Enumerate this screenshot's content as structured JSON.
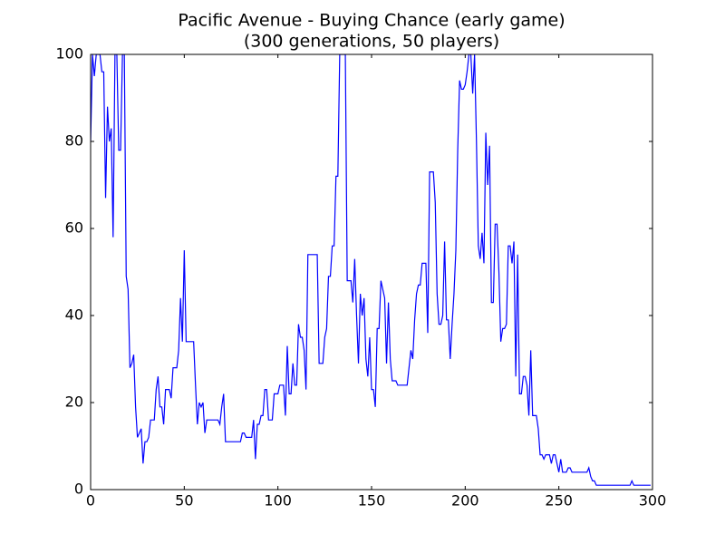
{
  "chart_data": {
    "type": "line",
    "title": "Pacific Avenue - Buying Chance (early game)",
    "subtitle": "(300 generations, 50 players)",
    "x": [
      0,
      1,
      2,
      3,
      4,
      5,
      6,
      7,
      8,
      9,
      10,
      11,
      12,
      13,
      14,
      15,
      16,
      17,
      18,
      19,
      20,
      21,
      22,
      23,
      24,
      25,
      26,
      27,
      28,
      29,
      30,
      31,
      32,
      33,
      34,
      35,
      36,
      37,
      38,
      39,
      40,
      41,
      42,
      43,
      44,
      45,
      46,
      47,
      48,
      49,
      50,
      51,
      52,
      53,
      54,
      55,
      56,
      57,
      58,
      59,
      60,
      61,
      62,
      63,
      64,
      65,
      66,
      67,
      68,
      69,
      70,
      71,
      72,
      73,
      74,
      75,
      76,
      77,
      78,
      79,
      80,
      81,
      82,
      83,
      84,
      85,
      86,
      87,
      88,
      89,
      90,
      91,
      92,
      93,
      94,
      95,
      96,
      97,
      98,
      99,
      100,
      101,
      102,
      103,
      104,
      105,
      106,
      107,
      108,
      109,
      110,
      111,
      112,
      113,
      114,
      115,
      116,
      117,
      118,
      119,
      120,
      121,
      122,
      123,
      124,
      125,
      126,
      127,
      128,
      129,
      130,
      131,
      132,
      133,
      134,
      135,
      136,
      137,
      138,
      139,
      140,
      141,
      142,
      143,
      144,
      145,
      146,
      147,
      148,
      149,
      150,
      151,
      152,
      153,
      154,
      155,
      156,
      157,
      158,
      159,
      160,
      161,
      162,
      163,
      164,
      165,
      166,
      167,
      168,
      169,
      170,
      171,
      172,
      173,
      174,
      175,
      176,
      177,
      178,
      179,
      180,
      181,
      182,
      183,
      184,
      185,
      186,
      187,
      188,
      189,
      190,
      191,
      192,
      193,
      194,
      195,
      196,
      197,
      198,
      199,
      200,
      201,
      202,
      203,
      204,
      205,
      206,
      207,
      208,
      209,
      210,
      211,
      212,
      213,
      214,
      215,
      216,
      217,
      218,
      219,
      220,
      221,
      222,
      223,
      224,
      225,
      226,
      227,
      228,
      229,
      230,
      231,
      232,
      233,
      234,
      235,
      236,
      237,
      238,
      239,
      240,
      241,
      242,
      243,
      244,
      245,
      246,
      247,
      248,
      249,
      250,
      251,
      252,
      253,
      254,
      255,
      256,
      257,
      258,
      259,
      260,
      261,
      262,
      263,
      264,
      265,
      266,
      267,
      268,
      269,
      270,
      271,
      272,
      273,
      274,
      275,
      276,
      277,
      278,
      279,
      280,
      281,
      282,
      283,
      284,
      285,
      286,
      287,
      288,
      289,
      290,
      291,
      292,
      293,
      294,
      295,
      296,
      297,
      298,
      299
    ],
    "series": [
      {
        "color": "#0000ff",
        "values": [
          80,
          100,
          95,
          100,
          100,
          100,
          96,
          96,
          67,
          88,
          80,
          83,
          58,
          100,
          100,
          78,
          78,
          100,
          100,
          49,
          46,
          28,
          29,
          31,
          19,
          12,
          13,
          14,
          6,
          11,
          11,
          12,
          16,
          16,
          16,
          23,
          26,
          19,
          19,
          15,
          23,
          23,
          23,
          21,
          28,
          28,
          28,
          32,
          44,
          34,
          55,
          34,
          34,
          34,
          34,
          34,
          24,
          15,
          20,
          19,
          20,
          13,
          16,
          16,
          16,
          16,
          16,
          16,
          16,
          15,
          19,
          22,
          11,
          11,
          11,
          11,
          11,
          11,
          11,
          11,
          11,
          13,
          13,
          12,
          12,
          12,
          12,
          16,
          7,
          15,
          15,
          17,
          17,
          23,
          23,
          16,
          16,
          16,
          22,
          22,
          22,
          24,
          24,
          24,
          17,
          33,
          22,
          22,
          29,
          24,
          24,
          38,
          35,
          35,
          32,
          23,
          54,
          54,
          54,
          54,
          54,
          54,
          29,
          29,
          29,
          35,
          37,
          49,
          49,
          56,
          56,
          72,
          72,
          100,
          100,
          100,
          100,
          48,
          48,
          48,
          43,
          53,
          40,
          29,
          45,
          40,
          44,
          30,
          26,
          35,
          23,
          23,
          19,
          37,
          37,
          48,
          46,
          44,
          29,
          43,
          30,
          25,
          25,
          25,
          24,
          24,
          24,
          24,
          24,
          24,
          28,
          32,
          30,
          39,
          45,
          47,
          47,
          52,
          52,
          52,
          36,
          73,
          73,
          73,
          66,
          45,
          38,
          38,
          40,
          57,
          39,
          39,
          30,
          38,
          45,
          55,
          78,
          94,
          92,
          92,
          93,
          96,
          100,
          100,
          91,
          100,
          80,
          56,
          53,
          59,
          52,
          82,
          70,
          79,
          43,
          43,
          61,
          61,
          50,
          34,
          37,
          37,
          38,
          56,
          56,
          52,
          57,
          26,
          54,
          22,
          22,
          26,
          26,
          24,
          17,
          32,
          17,
          17,
          17,
          14,
          8,
          8,
          7,
          8,
          8,
          8,
          6,
          8,
          8,
          6,
          4,
          7,
          4,
          4,
          4,
          5,
          5,
          4,
          4,
          4,
          4,
          4,
          4,
          4,
          4,
          4,
          5,
          3,
          2,
          2,
          1,
          1,
          1,
          1,
          1,
          1,
          1,
          1,
          1,
          1,
          1,
          1,
          1,
          1,
          1,
          1,
          1,
          1,
          1,
          2,
          1,
          1,
          1,
          1,
          1,
          1,
          1,
          1,
          1,
          1
        ]
      }
    ],
    "xlim": [
      0,
      300
    ],
    "xticks": [
      0,
      50,
      100,
      150,
      200,
      250,
      300
    ],
    "ylim": [
      0,
      100
    ],
    "yticks": [
      0,
      20,
      40,
      60,
      80,
      100
    ]
  }
}
